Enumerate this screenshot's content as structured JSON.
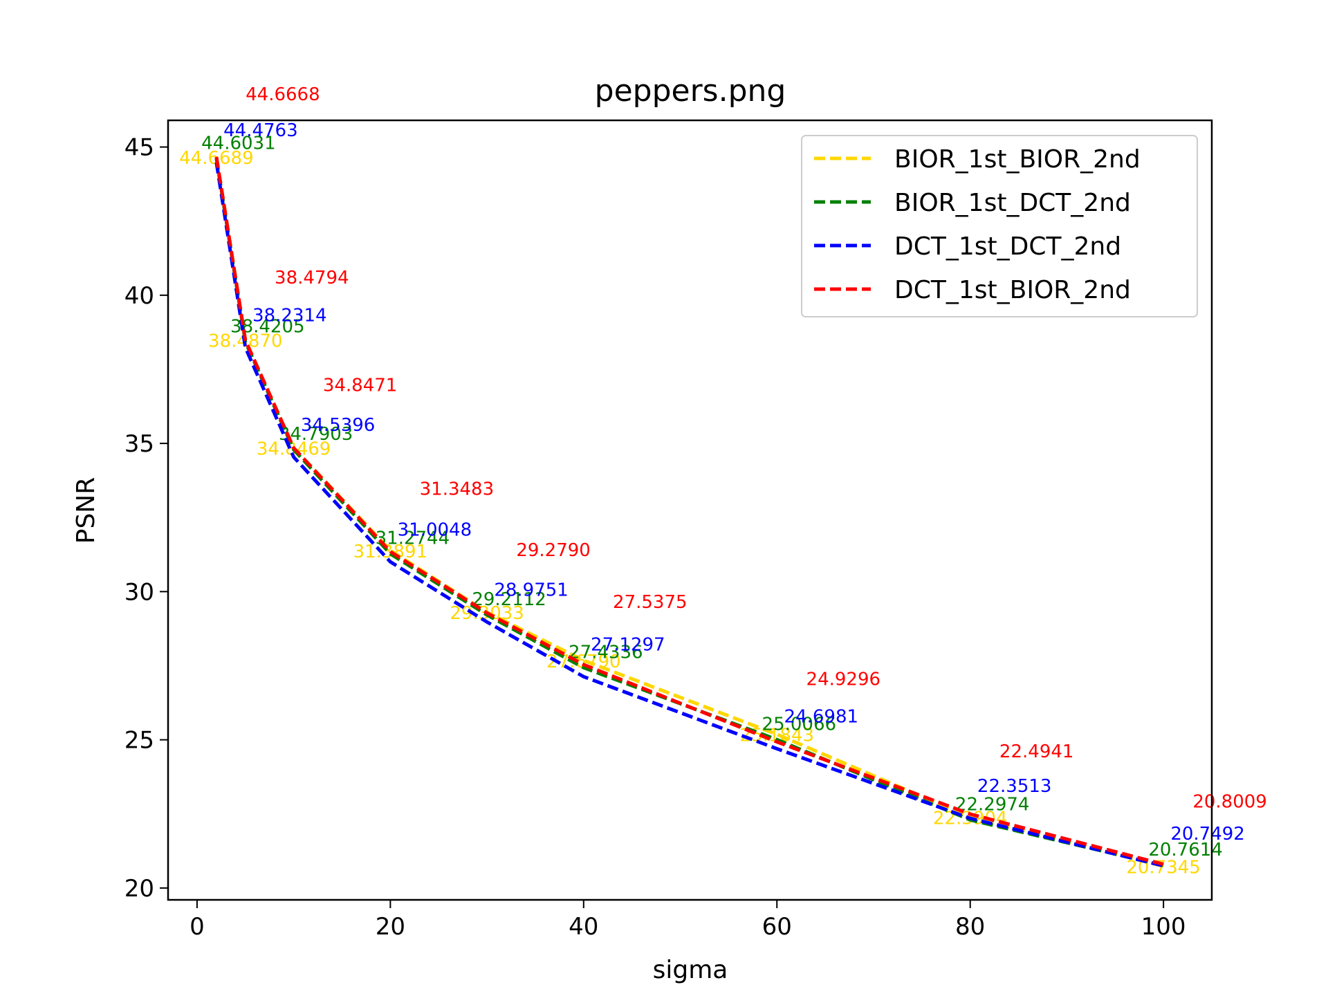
{
  "chart_data": {
    "type": "line",
    "title": "peppers.png",
    "xlabel": "sigma",
    "ylabel": "PSNR",
    "xlim": [
      -3,
      105
    ],
    "ylim": [
      19.6,
      45.9
    ],
    "xticks": [
      0,
      20,
      40,
      60,
      80,
      100
    ],
    "yticks": [
      20,
      25,
      30,
      35,
      40,
      45
    ],
    "grid": false,
    "legend_position": "top-right",
    "x": [
      2,
      5,
      10,
      20,
      30,
      40,
      60,
      80,
      100
    ],
    "series": [
      {
        "name": "BIOR_1st_BIOR_2nd",
        "color": "#FFD700",
        "style": "dashed",
        "values": [
          44.6689,
          38.487,
          34.8469,
          31.3891,
          29.3033,
          27.679,
          25.1843,
          22.3904,
          20.7345
        ],
        "labels": [
          "44.6689",
          "38.4870",
          "34.8469",
          "31.3891",
          "29.3033",
          "27.6790",
          "25.1843",
          "22.3904",
          "20.7345"
        ]
      },
      {
        "name": "BIOR_1st_DCT_2nd",
        "color": "#008000",
        "style": "dashed",
        "values": [
          44.6031,
          38.4205,
          34.7903,
          31.2744,
          29.2112,
          27.4336,
          25.0066,
          22.2974,
          20.7614
        ],
        "labels": [
          "44.6031",
          "38.4205",
          "34.7903",
          "31.2744",
          "29.2112",
          "27.4336",
          "25.0066",
          "22.2974",
          "20.7614"
        ]
      },
      {
        "name": "DCT_1st_DCT_2nd",
        "color": "#0000FF",
        "style": "dashed",
        "values": [
          44.4763,
          38.2314,
          34.5396,
          31.0048,
          28.9751,
          27.1297,
          24.6981,
          22.3513,
          20.7492
        ],
        "labels": [
          "44.4763",
          "38.2314",
          "34.5396",
          "31.0048",
          "28.9751",
          "27.1297",
          "24.6981",
          "22.3513",
          "20.7492"
        ]
      },
      {
        "name": "DCT_1st_BIOR_2nd",
        "color": "#FF0000",
        "style": "dashed",
        "values": [
          44.6668,
          38.4794,
          34.8471,
          31.3483,
          29.279,
          27.5375,
          24.9296,
          22.4941,
          20.8009
        ],
        "labels": [
          "44.6668",
          "38.4794",
          "34.8471",
          "31.3483",
          "29.2790",
          "27.5375",
          "24.9296",
          "22.4941",
          "20.8009"
        ]
      }
    ]
  }
}
